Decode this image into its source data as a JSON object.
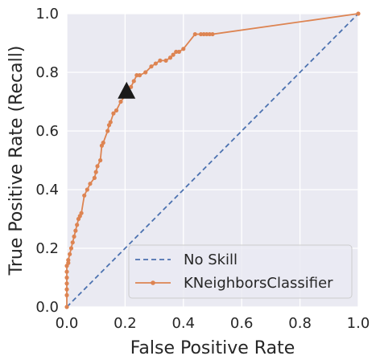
{
  "chart_data": {
    "type": "line",
    "title": "",
    "xlabel": "False Positive Rate",
    "ylabel": "True Positive Rate (Recall)",
    "xlim": [
      0,
      1
    ],
    "ylim": [
      0,
      1
    ],
    "xticks": [
      "0.0",
      "0.2",
      "0.4",
      "0.6",
      "0.8",
      "1.0"
    ],
    "yticks": [
      "0.0",
      "0.2",
      "0.4",
      "0.6",
      "0.8",
      "1.0"
    ],
    "grid": true,
    "legend_position": "lower-right",
    "series": [
      {
        "name": "No Skill",
        "style": "dashed",
        "color": "#4c72b0",
        "x": [
          0,
          1
        ],
        "y": [
          0,
          1
        ]
      },
      {
        "name": "KNeighborsClassifier",
        "style": "solid-with-markers",
        "color": "#dd8452",
        "x": [
          0,
          0,
          0,
          0,
          0,
          0,
          0,
          0.005,
          0.005,
          0.01,
          0.015,
          0.02,
          0.025,
          0.03,
          0.035,
          0.04,
          0.045,
          0.05,
          0.06,
          0.07,
          0.08,
          0.095,
          0.1,
          0.105,
          0.115,
          0.12,
          0.125,
          0.14,
          0.145,
          0.15,
          0.16,
          0.17,
          0.185,
          0.2,
          0.21,
          0.22,
          0.23,
          0.24,
          0.25,
          0.27,
          0.29,
          0.305,
          0.32,
          0.34,
          0.355,
          0.365,
          0.375,
          0.385,
          0.4,
          0.44,
          0.46,
          0.47,
          0.48,
          0.49,
          0.5,
          1.0
        ],
        "y": [
          0,
          0.04,
          0.06,
          0.08,
          0.1,
          0.12,
          0.14,
          0.15,
          0.16,
          0.18,
          0.2,
          0.22,
          0.24,
          0.26,
          0.28,
          0.3,
          0.31,
          0.32,
          0.38,
          0.4,
          0.42,
          0.44,
          0.46,
          0.48,
          0.5,
          0.55,
          0.56,
          0.6,
          0.62,
          0.63,
          0.66,
          0.67,
          0.7,
          0.72,
          0.74,
          0.75,
          0.77,
          0.79,
          0.79,
          0.8,
          0.82,
          0.83,
          0.84,
          0.84,
          0.85,
          0.86,
          0.87,
          0.87,
          0.88,
          0.93,
          0.93,
          0.93,
          0.93,
          0.93,
          0.93,
          1.0
        ]
      }
    ],
    "annotations": [
      {
        "shape": "triangle",
        "color": "#1a1a1a",
        "x": 0.205,
        "y": 0.735
      }
    ]
  }
}
